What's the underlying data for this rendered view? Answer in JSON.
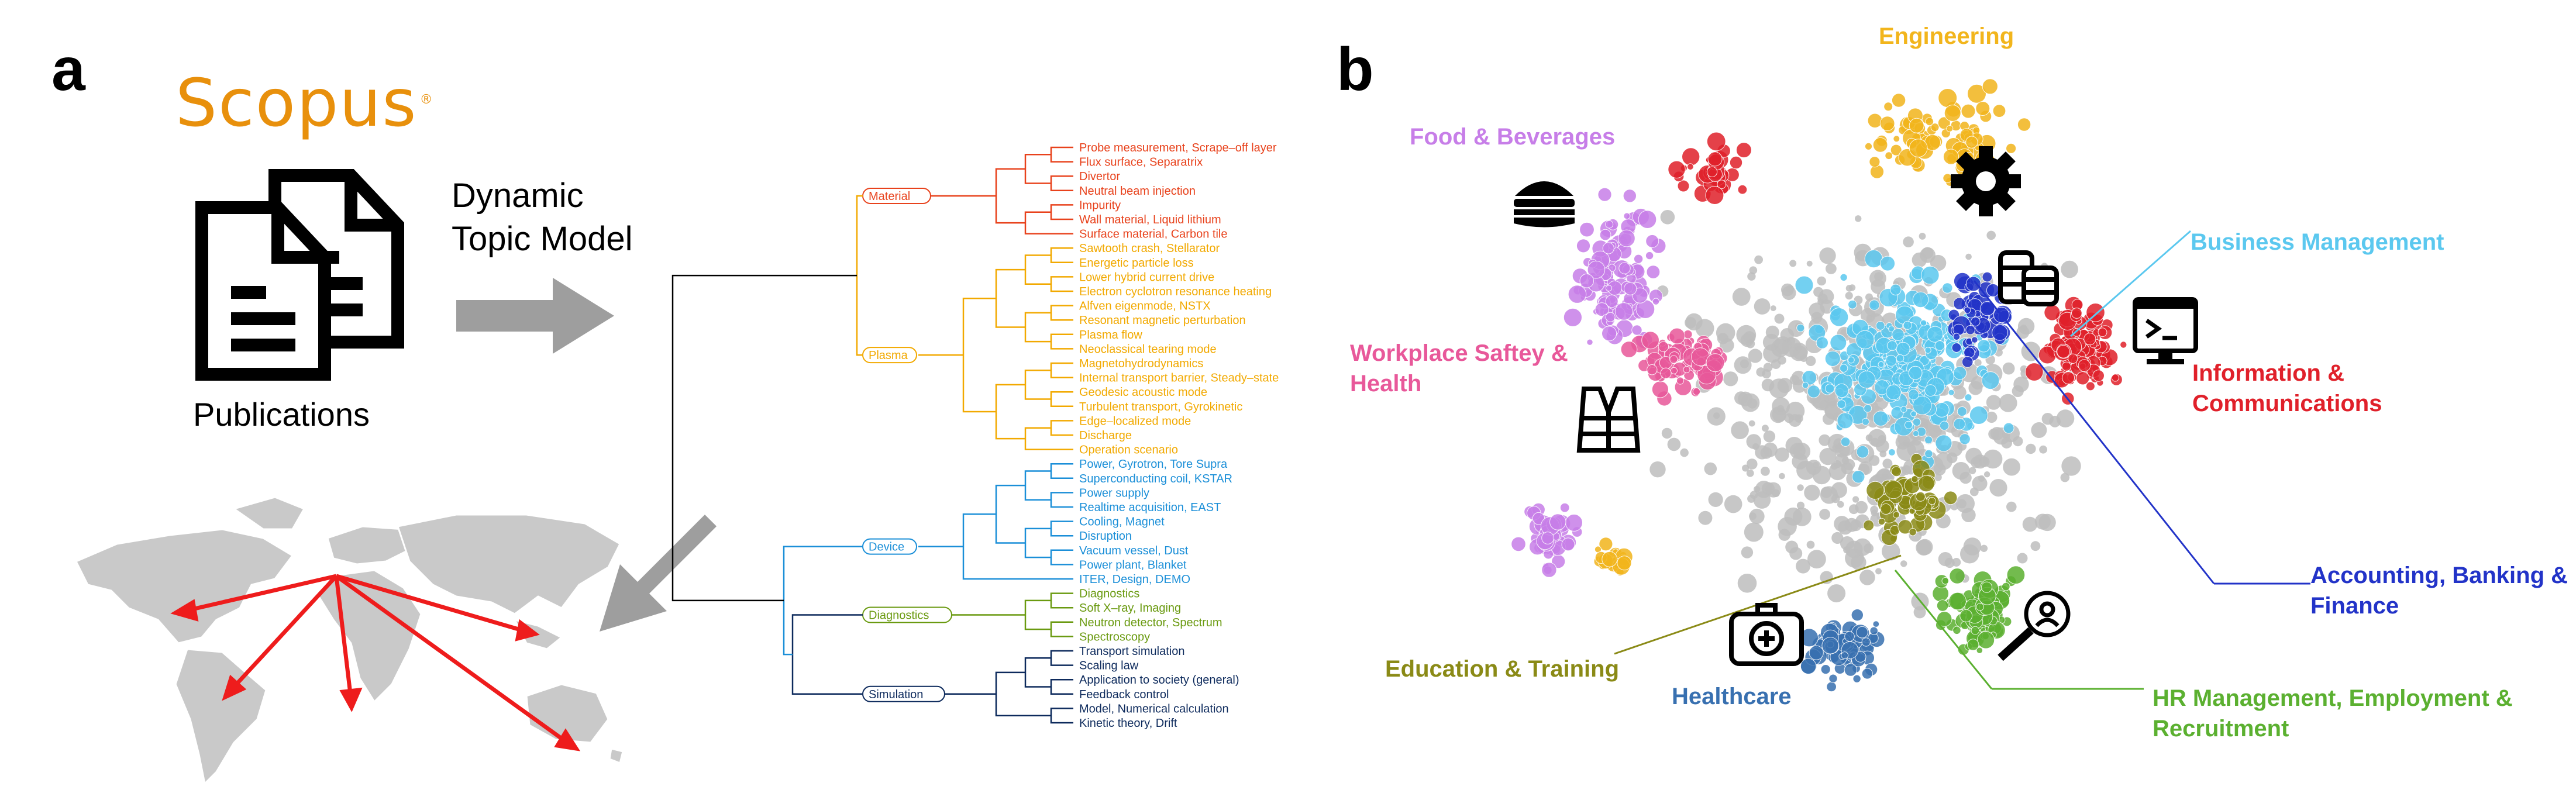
{
  "panel_a": {
    "label": "a",
    "logo_text": "Scopus",
    "logo_mark": "®",
    "arrow_label_line1": "Dynamic",
    "arrow_label_line2": "Topic Model",
    "publications_label": "Publications",
    "icons": [
      "documents-icon",
      "world-map-icon"
    ],
    "dendrogram": {
      "groups": [
        {
          "name": "Material",
          "color": "#e8421c",
          "leaves": [
            "Probe measurement, Scrape–off layer",
            "Flux surface, Separatrix",
            "Divertor",
            "Neutral beam injection",
            "Impurity",
            "Wall material, Liquid lithium",
            "Surface material, Carbon tile"
          ]
        },
        {
          "name": "Plasma",
          "color": "#f2a900",
          "leaves": [
            "Sawtooth crash, Stellarator",
            "Energetic particle loss",
            "Lower hybrid current drive",
            "Electron cyclotron resonance heating",
            "Alfven eigenmode, NSTX",
            "Resonant magnetic perturbation",
            "Plasma flow",
            "Neoclassical tearing mode",
            "Magnetohydrodynamics",
            "Internal transport barrier, Steady–state",
            "Geodesic acoustic mode",
            "Turbulent transport, Gyrokinetic",
            "Edge–localized mode",
            "Discharge",
            "Operation scenario"
          ]
        },
        {
          "name": "Device",
          "color": "#1b8fd8",
          "leaves": [
            "Power, Gyrotron, Tore Supra",
            "Superconducting coil, KSTAR",
            "Power supply",
            "Realtime acquisition, EAST",
            "Cooling, Magnet",
            "Disruption",
            "Vacuum vessel, Dust",
            "Power plant, Blanket",
            "ITER, Design, DEMO"
          ]
        },
        {
          "name": "Diagnostics",
          "color": "#6a9a10",
          "leaves": [
            "Diagnostics",
            "Soft X–ray, Imaging",
            "Neutron detector, Spectrum",
            "Spectroscopy"
          ]
        },
        {
          "name": "Simulation",
          "color": "#0d2a5c",
          "leaves": [
            "Transport simulation",
            "Scaling law",
            "Application to society (general)",
            "Feedback control",
            "Model, Numerical calculation",
            "Kinetic theory, Drift"
          ]
        }
      ]
    }
  },
  "panel_b": {
    "label": "b",
    "categories": [
      {
        "key": "engineering",
        "label": "Engineering",
        "color": "#f2b51c"
      },
      {
        "key": "food",
        "label": "Food & Beverages",
        "color": "#c77ee8"
      },
      {
        "key": "business",
        "label": "Business Management",
        "color": "#5bc8ef"
      },
      {
        "key": "workplace",
        "label1": "Workplace Saftey &",
        "label2": "Health",
        "color": "#e8589a"
      },
      {
        "key": "ict",
        "label1": "Information &",
        "label2": "Communications",
        "color": "#e0202a"
      },
      {
        "key": "accounting",
        "label1": "Accounting, Banking &",
        "label2": "Finance",
        "color": "#2233c8"
      },
      {
        "key": "education",
        "label": "Education & Training",
        "color": "#8a8a16"
      },
      {
        "key": "healthcare",
        "label": "Healthcare",
        "color": "#3870b0"
      },
      {
        "key": "hr",
        "label1": "HR Management, Employment &",
        "label2": "Recruitment",
        "color": "#5bb030"
      }
    ],
    "icons": [
      "burger-icon",
      "gear-icon",
      "coins-icon",
      "computer-terminal-icon",
      "safety-vest-icon",
      "medical-kit-icon",
      "recruitment-magnifier-icon"
    ]
  }
}
